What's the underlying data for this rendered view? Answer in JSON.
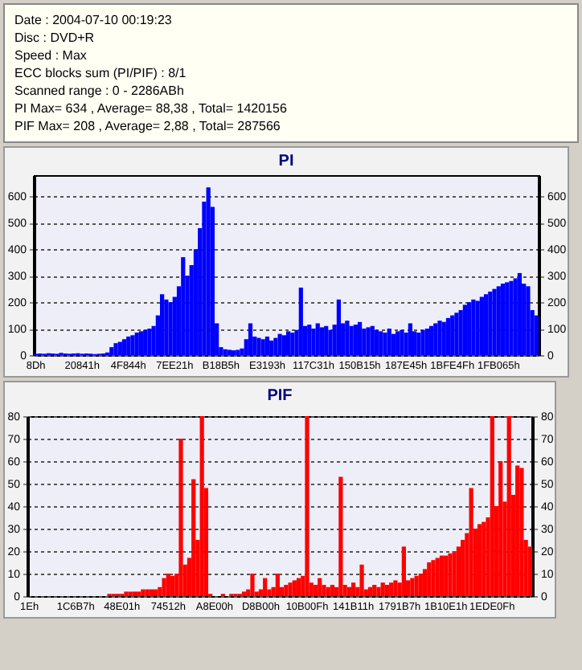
{
  "chart_data": [
    {
      "type": "other",
      "annotations": [
        "Date : 2004-07-10 00:19:23",
        "Disc : DVD+R",
        "Speed : Max",
        "ECC blocks sum (PI/PIF) : 8/1",
        "Scanned range : 0 - 2286ABh",
        "PI Max= 634 , Average= 88,38 , Total= 1420156",
        "PIF Max= 208 , Average= 2,88 , Total= 287566"
      ]
    },
    {
      "type": "bar",
      "title": "PI",
      "color": "#0000ff",
      "ylim": [
        0,
        680
      ],
      "yticks": [
        0,
        100,
        200,
        300,
        400,
        500,
        600
      ],
      "y2lim": [
        0,
        680
      ],
      "y2ticks": [
        0,
        100,
        200,
        300,
        400,
        500,
        600
      ],
      "grid": "y",
      "categories": [
        "8Dh",
        null,
        null,
        null,
        null,
        null,
        null,
        null,
        null,
        null,
        null,
        "20841h",
        null,
        null,
        null,
        null,
        null,
        null,
        null,
        null,
        null,
        null,
        "4F844h",
        null,
        null,
        null,
        null,
        null,
        null,
        null,
        null,
        null,
        null,
        "7EE21h",
        null,
        null,
        null,
        null,
        null,
        null,
        null,
        null,
        null,
        null,
        "B18B5h",
        null,
        null,
        null,
        null,
        null,
        null,
        null,
        null,
        null,
        null,
        "E3193h",
        null,
        null,
        null,
        null,
        null,
        null,
        null,
        null,
        null,
        null,
        "117C31h",
        null,
        null,
        null,
        null,
        null,
        null,
        null,
        null,
        null,
        null,
        "150B15h",
        null,
        null,
        null,
        null,
        null,
        null,
        null,
        null,
        null,
        null,
        "187E45h",
        null,
        null,
        null,
        null,
        null,
        null,
        null,
        null,
        null,
        null,
        "1BFE4Fh",
        null,
        null,
        null,
        null,
        null,
        null,
        null,
        null,
        null,
        null,
        "1FB065h",
        null,
        null,
        null,
        null,
        null,
        null,
        null,
        null,
        null
      ],
      "values": [
        5,
        6,
        5,
        7,
        6,
        5,
        8,
        6,
        5,
        6,
        7,
        5,
        6,
        5,
        4,
        5,
        6,
        10,
        30,
        45,
        50,
        60,
        70,
        75,
        85,
        90,
        95,
        100,
        110,
        150,
        230,
        210,
        200,
        220,
        260,
        370,
        300,
        340,
        400,
        480,
        580,
        634,
        560,
        120,
        30,
        22,
        20,
        18,
        20,
        25,
        60,
        120,
        70,
        65,
        60,
        70,
        55,
        65,
        80,
        75,
        90,
        85,
        95,
        255,
        110,
        115,
        100,
        120,
        105,
        110,
        95,
        115,
        210,
        120,
        130,
        110,
        115,
        125,
        100,
        105,
        110,
        95,
        90,
        85,
        100,
        80,
        90,
        95,
        85,
        120,
        90,
        85,
        95,
        100,
        110,
        120,
        130,
        125,
        140,
        150,
        160,
        170,
        190,
        200,
        210,
        205,
        220,
        230,
        240,
        250,
        260,
        270,
        275,
        280,
        290,
        310,
        270,
        260,
        170,
        150
      ]
    },
    {
      "type": "bar",
      "title": "PIF",
      "color": "#ff0000",
      "ylim": [
        0,
        80
      ],
      "yticks": [
        0,
        10,
        20,
        30,
        40,
        50,
        60,
        70,
        80
      ],
      "y2lim": [
        0,
        80
      ],
      "y2ticks": [
        0,
        10,
        20,
        30,
        40,
        50,
        60,
        70,
        80
      ],
      "grid": "y",
      "categories": [
        "1Eh",
        null,
        null,
        null,
        null,
        null,
        null,
        null,
        null,
        null,
        null,
        "1C6B7h",
        null,
        null,
        null,
        null,
        null,
        null,
        null,
        null,
        null,
        null,
        "48E01h",
        null,
        null,
        null,
        null,
        null,
        null,
        null,
        null,
        null,
        null,
        "74512h",
        null,
        null,
        null,
        null,
        null,
        null,
        null,
        null,
        null,
        null,
        "A8E00h",
        null,
        null,
        null,
        null,
        null,
        null,
        null,
        null,
        null,
        null,
        "D8B00h",
        null,
        null,
        null,
        null,
        null,
        null,
        null,
        null,
        null,
        null,
        "10B00Fh",
        null,
        null,
        null,
        null,
        null,
        null,
        null,
        null,
        null,
        null,
        "141B11h",
        null,
        null,
        null,
        null,
        null,
        null,
        null,
        null,
        null,
        null,
        "1791B7h",
        null,
        null,
        null,
        null,
        null,
        null,
        null,
        null,
        null,
        null,
        "1B10E1h",
        null,
        null,
        null,
        null,
        null,
        null,
        null,
        null,
        null,
        null,
        "1EDE0Fh",
        null,
        null,
        null,
        null,
        null,
        null,
        null,
        null,
        null
      ],
      "values": [
        0,
        0,
        0,
        0,
        0,
        0,
        0,
        0,
        0,
        0,
        0,
        0,
        0,
        0,
        0,
        0,
        0,
        0,
        0,
        1,
        1,
        1,
        1,
        2,
        2,
        2,
        2,
        3,
        3,
        3,
        3,
        4,
        8,
        10,
        9,
        10,
        70,
        14,
        17,
        52,
        25,
        80,
        48,
        1,
        0,
        0,
        1,
        0,
        1,
        1,
        1,
        2,
        3,
        10,
        2,
        3,
        8,
        3,
        4,
        10,
        4,
        5,
        6,
        7,
        8,
        9,
        80,
        6,
        5,
        8,
        5,
        4,
        5,
        4,
        53,
        5,
        4,
        6,
        4,
        14,
        3,
        4,
        5,
        4,
        6,
        5,
        6,
        7,
        6,
        22,
        7,
        8,
        9,
        10,
        12,
        15,
        16,
        17,
        18,
        18,
        19,
        20,
        22,
        25,
        28,
        48,
        30,
        32,
        33,
        35,
        80,
        40,
        60,
        42,
        80,
        45,
        58,
        57,
        25,
        22
      ]
    }
  ]
}
